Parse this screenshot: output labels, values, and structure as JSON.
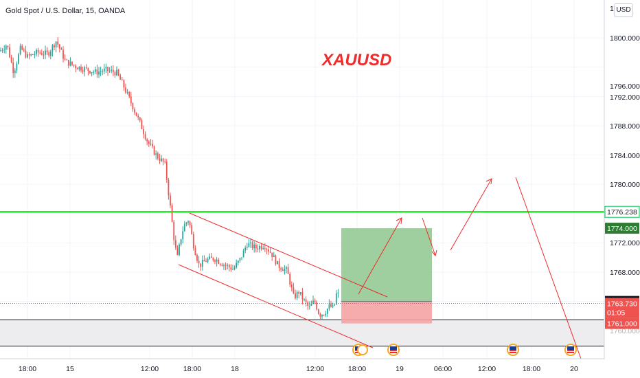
{
  "header": {
    "title": "Gold Spot / U.S. Dollar, 15, OANDA",
    "watermark": "XAUUSD",
    "currency": "USD"
  },
  "price_axis": {
    "ticks": [
      "1800.000",
      "1796.000",
      "1792.000",
      "1788.000",
      "1784.000",
      "1780.000",
      "1772.000",
      "1768.000"
    ],
    "partial_top": "18",
    "partial_bottom": "1760.000"
  },
  "time_axis": {
    "ticks": [
      "18:00",
      "15",
      "12:00",
      "18:00",
      "18",
      "12:00",
      "18:00",
      "19",
      "06:00",
      "12:00",
      "18:00",
      "20"
    ]
  },
  "price_tags": [
    {
      "label": "1776.238",
      "price": 1776.238,
      "style": "outline",
      "color": "#00c853"
    },
    {
      "label": "1774.000",
      "price": 1774.0,
      "style": "filled",
      "color": "#2e7d32"
    },
    {
      "label": "1764.000",
      "price": 1764.0,
      "style": "filled",
      "color": "#131722"
    },
    {
      "label": "1763.730",
      "price": 1763.73,
      "style": "filled",
      "color": "#ef5350"
    },
    {
      "label": "01:05",
      "price": 1762.5,
      "style": "filled",
      "color": "#ef5350"
    },
    {
      "label": "1761.000",
      "price": 1761.0,
      "style": "filled",
      "color": "#ef5350"
    }
  ],
  "colors": {
    "up": "#26a69a",
    "down": "#ef5350",
    "resistance": "#00e000",
    "projection": "#ef2b2b",
    "profit_zone": "#8ec58e",
    "loss_zone": "#f5a3a3",
    "support_band": "#ededf0"
  },
  "chart_data": {
    "type": "candlestick",
    "symbol": "XAUUSD",
    "timeframe": "15",
    "ylim": [
      1757.6,
      1803.2
    ],
    "x_ticks": [
      "18:00",
      "15",
      "12:00",
      "18:00",
      "18",
      "12:00",
      "18:00",
      "19",
      "06:00",
      "12:00",
      "18:00",
      "20"
    ],
    "horizontal_levels": [
      {
        "name": "resistance",
        "price": 1776.238,
        "color": "#00e000"
      },
      {
        "name": "support_band",
        "from": 1757.9,
        "to": 1761.5
      },
      {
        "name": "current_price_dotted",
        "price": 1763.73
      }
    ],
    "position": {
      "entry": 1764.0,
      "target": 1774.0,
      "stop": 1761.0
    },
    "channel": {
      "upper": [
        [
          1775.8,
          1775.8
        ],
        [
          1764.8,
          1764.8
        ]
      ]
    },
    "trend_arrows": 5,
    "event_markers": 5
  }
}
